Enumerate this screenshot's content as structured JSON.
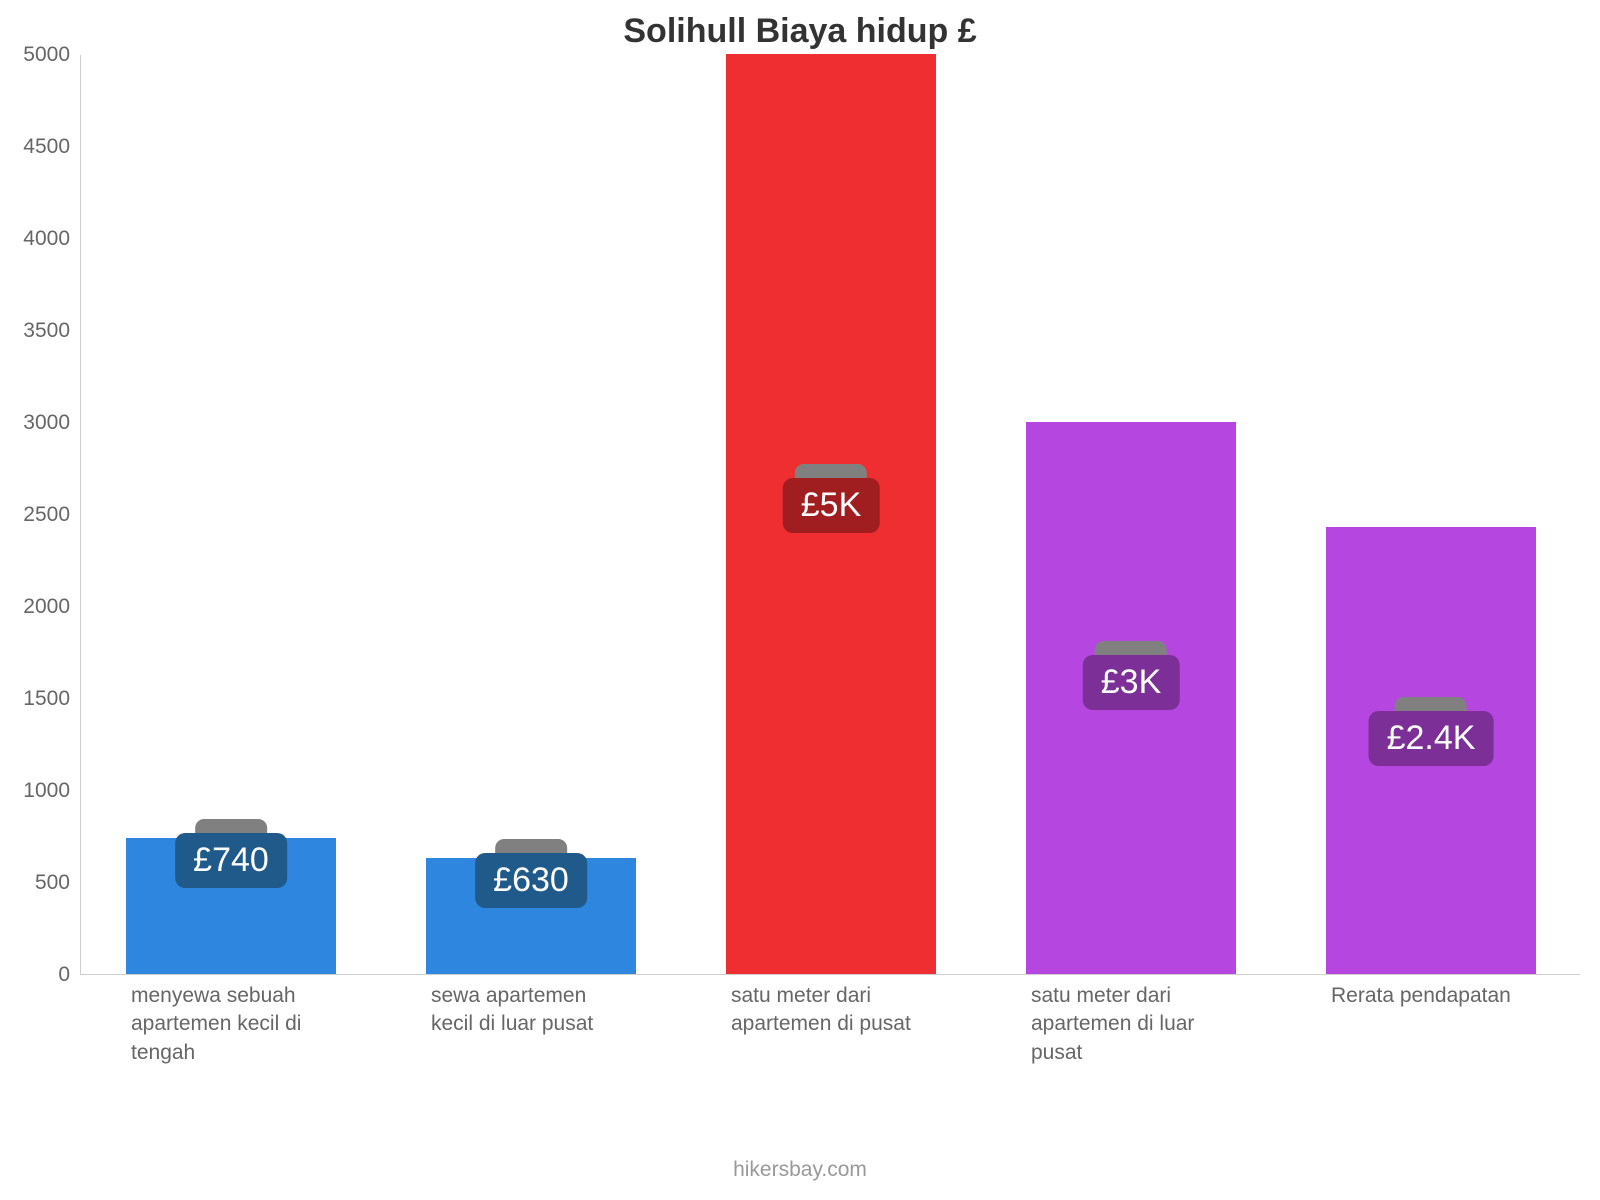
{
  "chart": {
    "type": "bar",
    "title": "Solihull Biaya hidup £",
    "title_fontsize": 34,
    "title_color": "#333333",
    "background_color": "#ffffff",
    "axis_line_color": "#cfcfcf",
    "ytick_label_color": "#666666",
    "xtick_label_color": "#666666",
    "ytick_fontsize": 21,
    "xtick_fontsize": 21,
    "ylim": [
      0,
      5000
    ],
    "ytick_step": 500,
    "yticks": [
      0,
      500,
      1000,
      1500,
      2000,
      2500,
      3000,
      3500,
      4000,
      4500,
      5000
    ],
    "bar_width_ratio": 0.7,
    "bars": [
      {
        "category": "menyewa sebuah apartemen kecil di tengah",
        "value": 740,
        "label": "£740",
        "bar_color": "#2e86de",
        "badge_color": "#1f5a8a"
      },
      {
        "category": "sewa apartemen kecil di luar pusat",
        "value": 630,
        "label": "£630",
        "bar_color": "#2e86de",
        "badge_color": "#1f5a8a"
      },
      {
        "category": "satu meter dari apartemen di pusat",
        "value": 5000,
        "label": "£5K",
        "bar_color": "#ee2e31",
        "badge_color": "#a11e20"
      },
      {
        "category": "satu meter dari apartemen di luar pusat",
        "value": 3000,
        "label": "£3K",
        "bar_color": "#b646e0",
        "badge_color": "#7b2f97"
      },
      {
        "category": "Rerata pendapatan",
        "value": 2430,
        "label": "£2.4K",
        "bar_color": "#b646e0",
        "badge_color": "#7b2f97"
      }
    ],
    "value_label_color": "#ffffff",
    "value_label_fontsize": 34,
    "badge_border_radius": 10,
    "badge_cap_color": "#808080",
    "attribution": "hikersbay.com",
    "attribution_color": "#999999"
  }
}
